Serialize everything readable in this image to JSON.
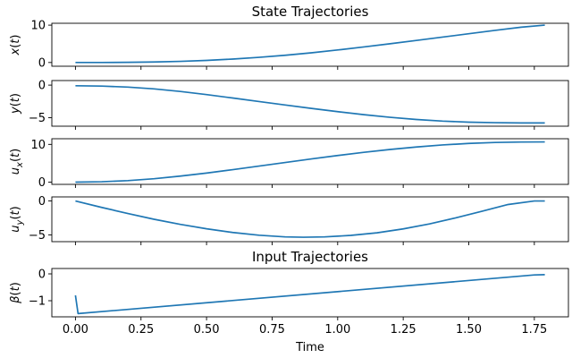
{
  "chart_data": [
    {
      "type": "line",
      "title": "State Trajectories",
      "xlabel": "",
      "ylabel": "x(t)",
      "ylabel_parts": [
        [
          "x",
          "i"
        ],
        [
          "(",
          "n"
        ],
        [
          "t",
          "i"
        ],
        [
          ")",
          "n"
        ]
      ],
      "xlim": [
        -0.09,
        1.88
      ],
      "ylim": [
        -1,
        10.5
      ],
      "yticks": [
        0,
        10
      ],
      "yticklabels": [
        "0",
        "10"
      ],
      "x": [
        0,
        0.1,
        0.2,
        0.3,
        0.4,
        0.5,
        0.6,
        0.7,
        0.8,
        0.9,
        1.0,
        1.1,
        1.2,
        1.3,
        1.4,
        1.5,
        1.6,
        1.7,
        1.79
      ],
      "y": [
        0.0,
        0.0,
        0.04,
        0.13,
        0.3,
        0.56,
        0.92,
        1.38,
        1.94,
        2.6,
        3.35,
        4.16,
        5.02,
        5.91,
        6.8,
        7.7,
        8.6,
        9.45,
        10.0
      ]
    },
    {
      "type": "line",
      "xlabel": "",
      "ylabel": "y(t)",
      "ylabel_parts": [
        [
          "y",
          "i"
        ],
        [
          "(",
          "n"
        ],
        [
          "t",
          "i"
        ],
        [
          ")",
          "n"
        ]
      ],
      "xlim": [
        -0.09,
        1.88
      ],
      "ylim": [
        -6.3,
        0.7
      ],
      "yticks": [
        0,
        -5
      ],
      "yticklabels": [
        "0",
        "−5"
      ],
      "x": [
        0,
        0.1,
        0.2,
        0.3,
        0.4,
        0.5,
        0.6,
        0.7,
        0.8,
        0.9,
        1.0,
        1.1,
        1.2,
        1.3,
        1.4,
        1.5,
        1.6,
        1.7,
        1.79
      ],
      "y": [
        -0.1,
        -0.15,
        -0.3,
        -0.58,
        -0.97,
        -1.45,
        -1.98,
        -2.52,
        -3.05,
        -3.57,
        -4.07,
        -4.53,
        -4.94,
        -5.27,
        -5.52,
        -5.68,
        -5.76,
        -5.8,
        -5.8
      ]
    },
    {
      "type": "line",
      "xlabel": "",
      "ylabel": "u_x(t)",
      "ylabel_parts": [
        [
          "u",
          "i"
        ],
        [
          "x",
          "sub"
        ],
        [
          "(",
          "n"
        ],
        [
          "t",
          "i"
        ],
        [
          ")",
          "n"
        ]
      ],
      "xlim": [
        -0.09,
        1.88
      ],
      "ylim": [
        -0.6,
        11.5
      ],
      "yticks": [
        0,
        10
      ],
      "yticklabels": [
        "0",
        "10"
      ],
      "x": [
        0,
        0.1,
        0.2,
        0.3,
        0.4,
        0.5,
        0.6,
        0.7,
        0.8,
        0.9,
        1.0,
        1.1,
        1.2,
        1.3,
        1.4,
        1.5,
        1.6,
        1.7,
        1.79
      ],
      "y": [
        0.0,
        0.1,
        0.4,
        0.9,
        1.6,
        2.4,
        3.3,
        4.25,
        5.2,
        6.15,
        7.05,
        7.9,
        8.65,
        9.3,
        9.85,
        10.25,
        10.5,
        10.62,
        10.65
      ]
    },
    {
      "type": "line",
      "xlabel": "",
      "ylabel": "u_y(t)",
      "ylabel_parts": [
        [
          "u",
          "i"
        ],
        [
          "y",
          "sub"
        ],
        [
          "(",
          "n"
        ],
        [
          "t",
          "i"
        ],
        [
          ")",
          "n"
        ]
      ],
      "xlim": [
        -0.09,
        1.88
      ],
      "ylim": [
        -6.0,
        0.6
      ],
      "yticks": [
        0,
        -5
      ],
      "yticklabels": [
        "0",
        "−5"
      ],
      "x": [
        0,
        0.1,
        0.2,
        0.3,
        0.4,
        0.5,
        0.6,
        0.7,
        0.8,
        0.87,
        0.95,
        1.05,
        1.15,
        1.25,
        1.35,
        1.45,
        1.55,
        1.65,
        1.75,
        1.79
      ],
      "y": [
        0.0,
        -0.95,
        -1.85,
        -2.7,
        -3.45,
        -4.1,
        -4.65,
        -5.05,
        -5.3,
        -5.35,
        -5.3,
        -5.08,
        -4.7,
        -4.12,
        -3.38,
        -2.5,
        -1.52,
        -0.52,
        0.0,
        0.0
      ]
    },
    {
      "type": "line",
      "title": "Input Trajectories",
      "xlabel": "Time",
      "ylabel": "β(t)",
      "ylabel_parts": [
        [
          "β",
          "i"
        ],
        [
          "(",
          "n"
        ],
        [
          "t",
          "i"
        ],
        [
          ")",
          "n"
        ]
      ],
      "xlim": [
        -0.09,
        1.88
      ],
      "ylim": [
        -1.6,
        0.2
      ],
      "yticks": [
        0,
        -1
      ],
      "yticklabels": [
        "0",
        "−1"
      ],
      "xticks": [
        0.0,
        0.25,
        0.5,
        0.75,
        1.0,
        1.25,
        1.5,
        1.75
      ],
      "xticklabels": [
        "0.00",
        "0.25",
        "0.50",
        "0.75",
        "1.00",
        "1.25",
        "1.50",
        "1.75"
      ],
      "x": [
        0.0,
        0.01,
        1.75,
        1.79
      ],
      "y": [
        -0.8,
        -1.48,
        -0.04,
        -0.03
      ]
    }
  ]
}
